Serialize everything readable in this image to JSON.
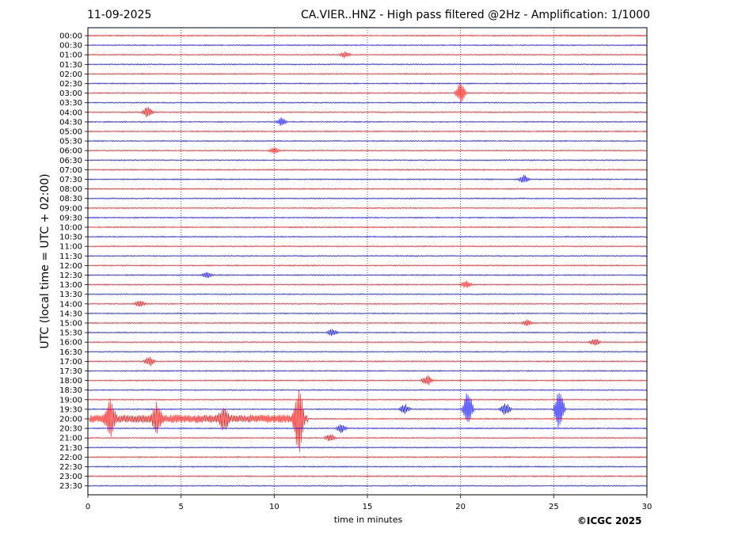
{
  "chart_data": {
    "type": "line",
    "title_left": "11-09-2025",
    "title": "CA.VIER..HNZ - High pass filtered @2Hz - Amplification: 1/1000",
    "xlabel": "time in minutes",
    "ylabel": "UTC (local time = UTC + 02:00)",
    "xlim": [
      0,
      30
    ],
    "x_ticks": [
      0,
      5,
      10,
      15,
      20,
      25,
      30
    ],
    "grid": "vertical dotted lines at x ticks",
    "series_colors": [
      "#ff0000",
      "#0000ff"
    ],
    "rows": [
      "00:00",
      "00:30",
      "01:00",
      "01:30",
      "02:00",
      "02:30",
      "03:00",
      "03:30",
      "04:00",
      "04:30",
      "05:00",
      "05:30",
      "06:00",
      "06:30",
      "07:00",
      "07:30",
      "08:00",
      "08:30",
      "09:00",
      "09:30",
      "10:00",
      "10:30",
      "11:00",
      "11:30",
      "12:00",
      "12:30",
      "13:00",
      "13:30",
      "14:00",
      "14:30",
      "15:00",
      "15:30",
      "16:00",
      "16:30",
      "17:00",
      "17:30",
      "18:00",
      "18:30",
      "19:00",
      "19:30",
      "20:00",
      "20:30",
      "21:00",
      "21:30",
      "22:00",
      "22:30",
      "23:00",
      "23:30"
    ],
    "events": [
      {
        "row": "01:00",
        "minute": 13.8,
        "amplitude": 0.3
      },
      {
        "row": "03:00",
        "minute": 20.0,
        "amplitude": 1.0
      },
      {
        "row": "04:00",
        "minute": 3.2,
        "amplitude": 0.5
      },
      {
        "row": "04:30",
        "minute": 10.4,
        "amplitude": 0.4
      },
      {
        "row": "06:00",
        "minute": 10.0,
        "amplitude": 0.3
      },
      {
        "row": "07:30",
        "minute": 23.4,
        "amplitude": 0.4
      },
      {
        "row": "12:30",
        "minute": 6.4,
        "amplitude": 0.3
      },
      {
        "row": "13:00",
        "minute": 20.3,
        "amplitude": 0.35
      },
      {
        "row": "14:00",
        "minute": 2.8,
        "amplitude": 0.35
      },
      {
        "row": "15:00",
        "minute": 23.6,
        "amplitude": 0.3
      },
      {
        "row": "15:30",
        "minute": 13.1,
        "amplitude": 0.35
      },
      {
        "row": "16:00",
        "minute": 27.2,
        "amplitude": 0.35
      },
      {
        "row": "17:00",
        "minute": 3.3,
        "amplitude": 0.5
      },
      {
        "row": "18:00",
        "minute": 18.2,
        "amplitude": 0.5
      },
      {
        "row": "19:30",
        "minute": 20.4,
        "amplitude": 2.0
      },
      {
        "row": "19:30",
        "minute": 22.4,
        "amplitude": 0.7
      },
      {
        "row": "19:30",
        "minute": 25.3,
        "amplitude": 2.0
      },
      {
        "row": "19:30",
        "minute": 17.0,
        "amplitude": 0.5
      },
      {
        "row": "20:00",
        "minute": 11.3,
        "amplitude": 3.2
      },
      {
        "row": "20:00",
        "minute": 1.2,
        "amplitude": 1.6
      },
      {
        "row": "20:00",
        "minute": 3.7,
        "amplitude": 1.2
      },
      {
        "row": "20:00",
        "minute": 7.3,
        "amplitude": 1.0
      },
      {
        "row": "20:30",
        "minute": 13.6,
        "amplitude": 0.4
      },
      {
        "row": "21:00",
        "minute": 13.0,
        "amplitude": 0.4
      }
    ],
    "noisy_segment": {
      "row": "20:00",
      "start_minute": 0.1,
      "end_minute": 11.8
    }
  },
  "copyright": "©ICGC 2025"
}
